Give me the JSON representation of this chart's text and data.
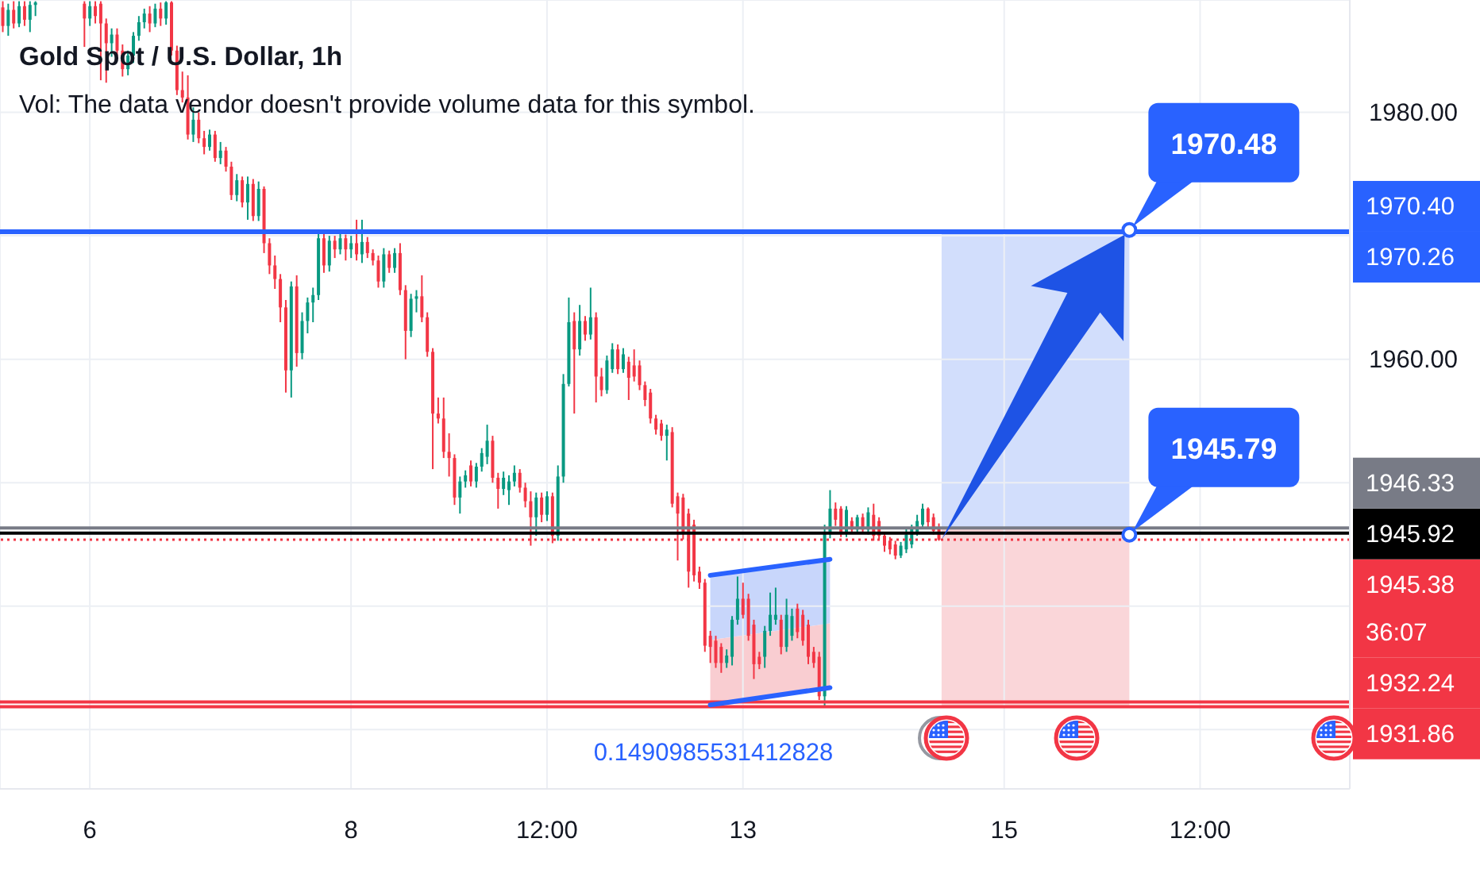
{
  "chart_data": {
    "type": "candlestick",
    "title": "Gold Spot / U.S. Dollar, 1h",
    "subtitle": "Vol: The data vendor doesn't provide volume data for this symbol.",
    "categories": [
      null,
      null,
      null,
      null,
      null,
      null,
      null,
      null,
      null,
      null,
      null,
      null,
      null,
      null,
      null,
      null,
      "6",
      null,
      null,
      null,
      null,
      null,
      null,
      null,
      null,
      null,
      null,
      null,
      null,
      null,
      null,
      null,
      null,
      null,
      null,
      null,
      null,
      null,
      null,
      null,
      null,
      null,
      null,
      null,
      null,
      null,
      null,
      null,
      null,
      null,
      null,
      null,
      null,
      null,
      null,
      null,
      null,
      null,
      null,
      null,
      null,
      null,
      null,
      null,
      "8",
      null,
      null,
      null,
      null,
      null,
      null,
      null,
      null,
      null,
      null,
      null,
      null,
      null,
      null,
      null,
      null,
      null,
      null,
      null,
      null,
      null,
      null,
      null,
      null,
      null,
      null,
      null,
      null,
      null,
      null,
      null,
      null,
      null,
      null,
      null,
      "12:00",
      null,
      null,
      null,
      null,
      null,
      null,
      null,
      null,
      null,
      null,
      null,
      null,
      null,
      null,
      null,
      null,
      null,
      null,
      null,
      null,
      null,
      null,
      null,
      null,
      null,
      null,
      null,
      null,
      null,
      null,
      null,
      null,
      null,
      null,
      null,
      "13",
      null,
      null,
      null,
      null,
      null,
      null,
      null,
      null,
      null,
      null,
      null,
      null,
      null,
      null,
      null,
      null,
      null,
      null,
      null,
      null,
      null,
      null,
      null,
      null,
      null,
      null,
      null,
      null,
      null,
      null,
      null,
      null,
      null,
      null,
      null,
      null,
      null,
      null,
      null,
      null,
      null,
      null,
      null,
      null,
      null,
      null,
      null,
      "15",
      null,
      null,
      null,
      null,
      null,
      null,
      null,
      null,
      null,
      null,
      null,
      null,
      null,
      null,
      null,
      null,
      null,
      null,
      null,
      null,
      null,
      null,
      null,
      null,
      null,
      null,
      null,
      null,
      null,
      null,
      null,
      null,
      null,
      null,
      null,
      "12:00",
      null,
      null,
      null,
      null,
      null,
      null,
      null,
      null,
      null,
      null,
      null,
      null,
      null,
      null,
      null,
      null,
      null,
      null,
      null,
      null,
      null,
      null,
      null,
      null,
      null,
      null,
      null
    ],
    "ohlc": [
      [
        1988.5,
        1989.0,
        1986.5,
        1987.0
      ],
      [
        1987.0,
        1988.8,
        1986.2,
        1988.3
      ],
      [
        1988.3,
        1989.0,
        1986.8,
        1987.2
      ],
      [
        1987.2,
        1989.0,
        1986.9,
        1988.6
      ],
      [
        1988.6,
        1989.0,
        1987.0,
        1987.5
      ],
      [
        1987.5,
        1989.0,
        1986.5,
        1988.7
      ],
      [
        1988.7,
        1989.0,
        1987.8,
        1988.9
      ],
      null,
      null,
      null,
      null,
      null,
      null,
      null,
      null,
      [
        1988.8,
        1989.0,
        1985.3,
        1987.6
      ],
      [
        1987.6,
        1989.0,
        1987.0,
        1988.6
      ],
      [
        1988.6,
        1989.0,
        1987.2,
        1987.8
      ],
      [
        1988.8,
        1989.0,
        1982.6,
        1987.2
      ],
      [
        1987.2,
        1987.6,
        1982.4,
        1985.6
      ],
      [
        1985.6,
        1986.8,
        1984.5,
        1986.3
      ],
      [
        1986.3,
        1986.8,
        1984.3,
        1985.0
      ],
      [
        1985.0,
        1985.5,
        1982.9,
        1983.5
      ],
      [
        1983.5,
        1985.0,
        1983.0,
        1984.6
      ],
      [
        1984.6,
        1986.5,
        1984.0,
        1986.2
      ],
      [
        1986.2,
        1987.8,
        1985.8,
        1987.3
      ],
      [
        1987.3,
        1988.4,
        1986.8,
        1988.0
      ],
      [
        1988.0,
        1988.6,
        1986.5,
        1987.2
      ],
      [
        1987.2,
        1988.8,
        1986.9,
        1988.4
      ],
      [
        1988.4,
        1988.9,
        1987.0,
        1987.6
      ],
      [
        1987.6,
        1989.0,
        1987.1,
        1988.9
      ],
      [
        1988.9,
        1989.0,
        1984.6,
        1985.0
      ],
      [
        1985.0,
        1985.4,
        1981.4,
        1981.8
      ],
      [
        1981.8,
        1983.3,
        1980.8,
        1981.2
      ],
      [
        1981.2,
        1983.0,
        1977.8,
        1978.2
      ],
      [
        1978.2,
        1980.4,
        1977.6,
        1979.4
      ],
      [
        1979.4,
        1980.0,
        1977.5,
        1977.9
      ],
      [
        1977.9,
        1978.5,
        1976.6,
        1977.2
      ],
      [
        1977.2,
        1978.6,
        1976.9,
        1978.2
      ],
      [
        1978.2,
        1978.5,
        1976.0,
        1976.3
      ],
      [
        1976.3,
        1977.6,
        1975.8,
        1976.9
      ],
      [
        1976.9,
        1977.2,
        1975.2,
        1975.6
      ],
      [
        1975.6,
        1976.0,
        1972.9,
        1973.3
      ],
      [
        1973.3,
        1975.0,
        1972.8,
        1974.5
      ],
      [
        1974.5,
        1974.8,
        1972.3,
        1972.7
      ],
      [
        1972.7,
        1974.8,
        1971.3,
        1974.2
      ],
      [
        1974.2,
        1974.6,
        1971.2,
        1971.6
      ],
      [
        1971.6,
        1974.4,
        1971.2,
        1973.8
      ],
      [
        1973.8,
        1974.0,
        1968.6,
        1969.4
      ],
      [
        1969.4,
        1969.8,
        1966.9,
        1967.6
      ],
      [
        1967.6,
        1968.4,
        1965.7,
        1966.5
      ],
      [
        1966.5,
        1966.9,
        1963.0,
        1964.2
      ],
      [
        1964.2,
        1964.8,
        1957.3,
        1959.1
      ],
      [
        1959.1,
        1966.3,
        1956.9,
        1965.9
      ],
      [
        1965.9,
        1966.8,
        1959.4,
        1960.5
      ],
      [
        1960.5,
        1963.8,
        1960.0,
        1963.1
      ],
      [
        1963.1,
        1965.0,
        1962.1,
        1964.6
      ],
      [
        1964.6,
        1965.8,
        1963.0,
        1965.2
      ],
      [
        1965.2,
        1970.3,
        1964.8,
        1969.8
      ],
      [
        1969.8,
        1970.4,
        1967.0,
        1967.6
      ],
      [
        1967.6,
        1970.0,
        1967.1,
        1969.6
      ],
      [
        1969.6,
        1970.0,
        1968.2,
        1968.9
      ],
      [
        1968.9,
        1970.3,
        1968.5,
        1969.8
      ],
      [
        1969.8,
        1970.1,
        1968.0,
        1968.9
      ],
      [
        1968.9,
        1970.0,
        1968.2,
        1969.4
      ],
      [
        1969.4,
        1971.3,
        1968.0,
        1968.5
      ],
      [
        1968.5,
        1971.3,
        1967.8,
        1969.5
      ],
      [
        1969.5,
        1969.9,
        1968.2,
        1968.6
      ],
      [
        1968.6,
        1968.9,
        1967.6,
        1968.0
      ],
      [
        1968.0,
        1968.4,
        1965.8,
        1966.3
      ],
      [
        1966.3,
        1969.0,
        1965.8,
        1968.5
      ],
      [
        1968.5,
        1968.8,
        1967.0,
        1967.4
      ],
      [
        1967.4,
        1969.0,
        1967.0,
        1968.6
      ],
      [
        1968.6,
        1969.4,
        1965.2,
        1965.6
      ],
      [
        1965.6,
        1966.0,
        1960.0,
        1962.3
      ],
      [
        1962.3,
        1965.3,
        1961.8,
        1964.9
      ],
      [
        1964.9,
        1965.6,
        1963.8,
        1965.1
      ],
      [
        1965.1,
        1966.8,
        1963.0,
        1963.4
      ],
      [
        1963.4,
        1963.8,
        1960.2,
        1960.6
      ],
      [
        1960.6,
        1960.9,
        1951.1,
        1955.6
      ],
      [
        1955.6,
        1956.9,
        1954.8,
        1955.2
      ],
      [
        1955.2,
        1956.9,
        1952.0,
        1952.5
      ],
      [
        1952.5,
        1954.0,
        1950.5,
        1952.0
      ],
      [
        1952.0,
        1952.3,
        1948.2,
        1948.8
      ],
      [
        1948.8,
        1950.5,
        1947.5,
        1950.1
      ],
      [
        1950.1,
        1951.0,
        1949.6,
        1950.6
      ],
      [
        1951.4,
        1951.8,
        1949.7,
        1950.1
      ],
      [
        1950.1,
        1951.6,
        1949.6,
        1951.3
      ],
      [
        1951.3,
        1952.8,
        1950.9,
        1952.4
      ],
      [
        1952.1,
        1954.7,
        1951.5,
        1953.4
      ],
      [
        1953.4,
        1953.8,
        1950.0,
        1950.4
      ],
      [
        1950.4,
        1950.8,
        1947.9,
        1949.5
      ],
      [
        1949.5,
        1950.9,
        1949.0,
        1950.4
      ],
      [
        1949.4,
        1950.6,
        1948.2,
        1950.1
      ],
      [
        1950.1,
        1951.4,
        1949.7,
        1950.8
      ],
      [
        1950.8,
        1951.1,
        1949.2,
        1949.6
      ],
      [
        1949.6,
        1950.0,
        1948.0,
        1948.5
      ],
      [
        1948.5,
        1949.3,
        1944.9,
        1947.2
      ],
      [
        1947.2,
        1949.2,
        1945.7,
        1948.8
      ],
      [
        1948.8,
        1949.2,
        1946.8,
        1947.4
      ],
      [
        1947.4,
        1949.3,
        1946.9,
        1948.9
      ],
      [
        1948.9,
        1949.2,
        1945.1,
        1945.7
      ],
      [
        1945.7,
        1951.4,
        1945.3,
        1950.5
      ],
      [
        1950.5,
        1958.8,
        1950.0,
        1958.0
      ],
      [
        1958.0,
        1965.0,
        1957.8,
        1963.0
      ],
      [
        1963.1,
        1963.8,
        1955.6,
        1960.8
      ],
      [
        1960.8,
        1964.4,
        1960.3,
        1963.1
      ],
      [
        1963.1,
        1963.5,
        1961.5,
        1962.0
      ],
      [
        1962.0,
        1965.8,
        1961.6,
        1963.4
      ],
      [
        1963.4,
        1963.8,
        1956.5,
        1958.6
      ],
      [
        1958.6,
        1959.3,
        1957.0,
        1957.5
      ],
      [
        1957.5,
        1960.3,
        1957.2,
        1959.9
      ],
      [
        1959.2,
        1961.3,
        1958.9,
        1960.8
      ],
      [
        1960.8,
        1961.2,
        1958.8,
        1959.2
      ],
      [
        1959.2,
        1960.9,
        1958.9,
        1960.4
      ],
      [
        1959.8,
        1960.2,
        1956.7,
        1958.5
      ],
      [
        1959.5,
        1960.8,
        1958.2,
        1958.6
      ],
      [
        1959.5,
        1959.9,
        1957.5,
        1957.9
      ],
      [
        1957.9,
        1958.2,
        1956.2,
        1956.7
      ],
      [
        1957.3,
        1957.6,
        1954.8,
        1955.2
      ],
      [
        1955.2,
        1955.5,
        1953.9,
        1954.3
      ],
      [
        1954.8,
        1955.1,
        1953.4,
        1953.8
      ],
      [
        1953.8,
        1954.7,
        1951.8,
        1954.3
      ],
      [
        1954.1,
        1954.5,
        1948.0,
        1948.3
      ],
      [
        1948.9,
        1949.2,
        1943.7,
        1947.5
      ],
      [
        1948.8,
        1949.1,
        1945.4,
        1946.0
      ],
      [
        1947.5,
        1947.9,
        1941.5,
        1942.8
      ],
      [
        1946.6,
        1947.0,
        1942.0,
        1942.5
      ],
      [
        1942.8,
        1943.2,
        1941.4,
        1941.9
      ],
      [
        1941.9,
        1942.2,
        1936.3,
        1936.8
      ],
      [
        1937.6,
        1938.0,
        1935.4,
        1936.7
      ],
      [
        1937.2,
        1937.6,
        1935.0,
        1935.4
      ],
      [
        1936.7,
        1937.0,
        1934.6,
        1935.4
      ],
      [
        1935.4,
        1936.5,
        1935.0,
        1936.0
      ],
      [
        1935.9,
        1939.2,
        1935.2,
        1938.9
      ],
      [
        1938.9,
        1942.4,
        1938.5,
        1940.6
      ],
      [
        1940.6,
        1941.9,
        1939.0,
        1939.3
      ],
      [
        1940.6,
        1941.0,
        1937.2,
        1937.6
      ],
      [
        1938.5,
        1938.9,
        1934.1,
        1935.3
      ],
      [
        1935.9,
        1936.3,
        1934.9,
        1935.3
      ],
      [
        1935.9,
        1938.4,
        1935.0,
        1938.0
      ],
      [
        1938.0,
        1941.1,
        1937.6,
        1939.3
      ],
      [
        1938.9,
        1941.5,
        1938.5,
        1939.3
      ],
      [
        1938.9,
        1939.3,
        1936.1,
        1936.7
      ],
      [
        1936.7,
        1940.6,
        1936.3,
        1939.3
      ],
      [
        1937.6,
        1939.8,
        1937.2,
        1939.2
      ],
      [
        1939.8,
        1940.2,
        1937.4,
        1937.9
      ],
      [
        1939.3,
        1939.7,
        1936.8,
        1937.2
      ],
      [
        1938.5,
        1938.9,
        1935.3,
        1935.9
      ],
      [
        1936.3,
        1936.7,
        1935.0,
        1935.4
      ],
      [
        1935.9,
        1936.3,
        1932.4,
        1932.7
      ],
      [
        1932.7,
        1946.6,
        1931.9,
        1945.9
      ],
      [
        1945.9,
        1949.4,
        1945.5,
        1947.9
      ],
      [
        1947.9,
        1948.4,
        1946.5,
        1947.0
      ],
      [
        1947.9,
        1948.1,
        1945.6,
        1946.0
      ],
      [
        1946.0,
        1948.1,
        1945.6,
        1947.8
      ],
      [
        1946.9,
        1947.2,
        1945.9,
        1946.2
      ],
      [
        1946.2,
        1947.4,
        1945.9,
        1947.2
      ],
      [
        1947.2,
        1947.5,
        1945.9,
        1946.2
      ],
      [
        1946.2,
        1948.0,
        1945.8,
        1947.6
      ],
      [
        1947.4,
        1948.3,
        1945.3,
        1945.7
      ],
      [
        1946.9,
        1947.2,
        1945.4,
        1945.7
      ],
      [
        1945.7,
        1946.0,
        1944.4,
        1944.9
      ],
      [
        1945.3,
        1945.6,
        1944.2,
        1944.6
      ],
      [
        1945.0,
        1945.3,
        1943.8,
        1944.1
      ],
      [
        1944.1,
        1945.2,
        1943.9,
        1944.9
      ],
      [
        1944.6,
        1946.4,
        1944.3,
        1945.8
      ],
      [
        1945.0,
        1946.6,
        1944.7,
        1946.3
      ],
      [
        1946.0,
        1947.4,
        1945.7,
        1946.9
      ],
      [
        1946.6,
        1948.3,
        1946.3,
        1947.9
      ],
      [
        1947.9,
        1948.0,
        1946.4,
        1946.8
      ],
      [
        1947.2,
        1947.5,
        1945.8,
        1946.1
      ],
      [
        1946.4,
        1946.7,
        1945.3,
        1945.38
      ],
      null,
      null,
      null,
      null,
      null,
      null,
      null,
      null,
      null,
      null,
      null,
      null,
      null,
      null,
      null,
      null,
      null,
      null,
      null,
      null,
      null,
      null,
      null,
      null,
      null,
      null,
      null,
      null,
      null,
      null,
      null,
      null,
      null,
      null,
      null,
      null,
      null,
      null,
      null,
      null,
      null,
      null,
      null,
      null,
      null,
      null,
      null,
      null,
      null,
      null,
      null,
      null,
      null,
      null,
      null,
      null,
      null,
      null,
      null,
      null,
      null,
      null,
      null,
      null,
      null,
      null,
      null,
      null,
      null,
      null,
      null,
      null,
      null,
      null,
      null
    ],
    "colors": [
      "#f23645",
      "#089981",
      "#f23645",
      "#089981",
      "#f23645",
      "#089981",
      "#089981",
      null,
      null,
      null,
      null,
      null,
      null,
      null,
      null,
      "#f23645",
      "#089981",
      "#f23645",
      "#f23645",
      "#f23645",
      "#089981",
      "#f23645",
      "#f23645",
      "#089981",
      "#089981",
      "#089981",
      "#089981",
      "#f23645",
      "#089981",
      "#f23645",
      "#089981",
      "#f23645",
      "#f23645",
      "#f23645",
      "#f23645",
      "#089981",
      "#f23645",
      "#f23645",
      "#089981",
      "#f23645",
      "#089981",
      "#f23645",
      "#f23645",
      "#089981",
      "#f23645",
      "#089981",
      "#f23645",
      "#089981",
      "#f23645",
      "#f23645",
      "#f23645",
      "#f23645",
      "#f23645",
      "#089981",
      "#f23645",
      "#089981",
      "#089981",
      "#089981",
      "#089981",
      "#f23645",
      "#089981",
      "#f23645",
      "#089981",
      "#f23645",
      "#089981",
      "#f23645",
      "#089981",
      "#f23645",
      "#f23645",
      "#f23645",
      "#089981",
      "#f23645",
      "#089981",
      "#f23645",
      "#f23645",
      "#089981",
      "#089981",
      "#f23645",
      "#f23645",
      "#f23645",
      "#f23645",
      "#f23645",
      "#f23645",
      "#f23645",
      "#089981",
      "#089981",
      "#f23645",
      "#089981",
      "#089981",
      "#089981",
      "#f23645",
      "#f23645",
      "#089981",
      "#089981",
      "#089981",
      "#f23645",
      "#f23645",
      "#f23645",
      "#089981",
      "#f23645",
      "#089981",
      "#f23645",
      "#089981",
      "#089981",
      "#089981",
      "#f23645",
      "#089981",
      "#f23645",
      "#089981",
      "#f23645",
      "#f23645",
      "#089981",
      "#089981",
      "#f23645",
      "#089981",
      "#f23645",
      "#f23645",
      "#f23645",
      "#f23645",
      "#f23645",
      "#f23645",
      "#f23645",
      "#089981",
      "#f23645",
      "#f23645",
      "#f23645",
      "#f23645",
      "#f23645",
      "#f23645",
      "#f23645",
      "#f23645",
      "#f23645",
      "#f23645",
      "#089981",
      "#089981",
      "#089981",
      "#f23645",
      "#f23645",
      "#f23645",
      "#f23645",
      "#089981",
      "#089981",
      "#089981",
      "#f23645",
      "#089981",
      "#089981",
      "#f23645",
      "#f23645",
      "#f23645",
      "#f23645",
      "#f23645",
      "#089981",
      "#089981",
      "#f23645",
      "#f23645",
      "#089981",
      "#f23645",
      "#089981",
      "#f23645",
      "#089981",
      "#f23645",
      "#f23645",
      "#f23645",
      "#f23645",
      "#f23645",
      "#089981",
      "#089981",
      "#089981",
      "#089981",
      "#089981",
      "#f23645",
      "#f23645",
      "#f23645",
      null,
      null,
      null,
      null,
      null,
      null,
      null,
      null,
      null,
      null,
      null,
      null,
      null,
      null,
      null,
      null,
      null,
      null,
      null,
      null,
      null,
      null,
      null,
      null,
      null,
      null,
      null,
      null,
      null,
      null,
      null,
      null,
      null,
      null,
      null,
      null,
      null,
      null,
      null,
      null,
      null,
      null,
      null,
      null,
      null,
      null,
      null,
      null,
      null,
      null,
      null,
      null,
      null,
      null,
      null,
      null,
      null,
      null,
      null,
      null,
      null,
      null,
      null,
      null,
      null,
      null,
      null,
      null,
      null,
      null,
      null,
      null,
      null,
      null,
      null
    ],
    "series": [
      {
        "type": "line",
        "color": "#2962ff",
        "values": [
          null,
          null,
          null,
          null,
          null,
          null,
          null,
          null,
          null,
          null,
          null,
          null,
          null,
          null,
          null,
          null,
          null,
          null,
          null,
          null,
          null,
          null,
          null,
          null,
          null,
          null,
          null,
          null,
          null,
          null,
          null,
          null,
          null,
          null,
          null,
          null,
          null,
          null,
          null,
          null,
          null,
          null,
          null,
          null,
          null,
          null,
          null,
          null,
          null,
          null,
          null,
          null,
          null,
          null,
          null,
          null,
          null,
          null,
          null,
          null,
          null,
          null,
          null,
          null,
          null,
          null,
          null,
          null,
          null,
          null,
          null,
          null,
          null,
          null,
          null,
          null,
          null,
          null,
          null,
          null,
          null,
          null,
          null,
          null,
          null,
          null,
          null,
          null,
          null,
          null,
          null,
          null,
          null,
          null,
          null,
          null,
          null,
          null,
          null,
          null,
          null,
          null,
          null,
          null,
          null,
          null,
          null,
          null,
          null,
          null,
          null,
          null,
          null,
          null,
          null,
          null,
          null,
          null,
          null,
          null,
          null,
          null,
          null,
          null,
          null,
          null,
          null,
          null,
          null,
          null,
          1942.5,
          null,
          null,
          null,
          null,
          null,
          null,
          null,
          null,
          null,
          null,
          null,
          null,
          null,
          null,
          null,
          null,
          null,
          null,
          null,
          null,
          null,
          1943.8,
          null,
          null,
          null,
          null,
          null,
          null,
          null,
          null,
          null,
          null,
          null,
          null,
          null,
          null,
          null,
          null,
          null,
          null,
          null,
          null,
          null,
          null,
          null,
          null,
          null,
          null,
          null,
          null,
          null,
          null,
          null,
          null,
          null,
          null,
          null,
          null,
          null,
          null,
          null,
          null,
          null,
          null,
          null,
          null,
          null,
          null,
          null,
          null,
          null,
          null,
          null,
          null,
          null,
          null,
          null,
          null,
          null,
          null,
          null,
          null,
          null,
          null,
          null,
          null,
          null,
          null,
          null,
          null,
          null,
          null,
          null,
          null,
          null,
          null,
          null,
          null,
          null,
          null,
          null,
          null,
          null,
          null,
          null,
          null,
          null,
          null,
          null,
          null,
          null,
          null,
          null,
          null,
          null,
          null,
          null
        ]
      },
      {
        "type": "line",
        "color": "#2962ff",
        "values": [
          null,
          null,
          null,
          null,
          null,
          null,
          null,
          null,
          null,
          null,
          null,
          null,
          null,
          null,
          null,
          null,
          null,
          null,
          null,
          null,
          null,
          null,
          null,
          null,
          null,
          null,
          null,
          null,
          null,
          null,
          null,
          null,
          null,
          null,
          null,
          null,
          null,
          null,
          null,
          null,
          null,
          null,
          null,
          null,
          null,
          null,
          null,
          null,
          null,
          null,
          null,
          null,
          null,
          null,
          null,
          null,
          null,
          null,
          null,
          null,
          null,
          null,
          null,
          null,
          null,
          null,
          null,
          null,
          null,
          null,
          null,
          null,
          null,
          null,
          null,
          null,
          null,
          null,
          null,
          null,
          null,
          null,
          null,
          null,
          null,
          null,
          null,
          null,
          null,
          null,
          null,
          null,
          null,
          null,
          null,
          null,
          null,
          null,
          null,
          null,
          null,
          null,
          null,
          null,
          null,
          null,
          null,
          null,
          null,
          null,
          null,
          null,
          null,
          null,
          null,
          null,
          null,
          null,
          null,
          null,
          null,
          null,
          null,
          null,
          null,
          null,
          null,
          null,
          null,
          null,
          1932.0,
          null,
          null,
          null,
          null,
          null,
          null,
          null,
          null,
          null,
          null,
          null,
          null,
          null,
          null,
          null,
          null,
          null,
          null,
          null,
          null,
          null,
          1933.4,
          null,
          null,
          null,
          null,
          null,
          null,
          null,
          null,
          null,
          null,
          null,
          null,
          null,
          null,
          null,
          null,
          null,
          null,
          null,
          null,
          null,
          null,
          null,
          null,
          null,
          null,
          null,
          null,
          null,
          null,
          null,
          null,
          null,
          null,
          null,
          null,
          null,
          null,
          null,
          null,
          null,
          null,
          null,
          null,
          null,
          null,
          null,
          null,
          null,
          null,
          null,
          null,
          null,
          null,
          null,
          null,
          null,
          null,
          null,
          null,
          null,
          null,
          null,
          null,
          null,
          null,
          null,
          null,
          null,
          null,
          null,
          null,
          null,
          null,
          null,
          null,
          null,
          null,
          null,
          null,
          null,
          null,
          null,
          null,
          null,
          null,
          null,
          null,
          null,
          null,
          null,
          null,
          null,
          null,
          null
        ]
      }
    ],
    "ylim": [
      1925.2,
      1989.1
    ],
    "yticks": [
      {
        "value": 1930,
        "label": null
      },
      {
        "value": 1940,
        "label": null
      },
      {
        "value": 1950,
        "label": null
      },
      {
        "value": 1960,
        "label": "1960.00"
      },
      {
        "value": 1970,
        "label": null
      },
      {
        "value": 1980,
        "label": "1980.00"
      }
    ],
    "grid": true,
    "ref_lines": [
      {
        "axis": "y",
        "value": 1945.38,
        "label": "1945.38\n36:07",
        "color": "#f23645",
        "line_style": "dotted"
      },
      {
        "axis": "y",
        "value": 1970.26,
        "label": "1970.26",
        "color": "#2962ff"
      },
      {
        "axis": "y",
        "value": 1970.4,
        "label": "1970.40",
        "color": "#2962ff"
      },
      {
        "axis": "y",
        "value": 1945.92,
        "label": "1945.92",
        "color": "#000000"
      },
      {
        "axis": "y",
        "value": 1946.33,
        "label": "1946.33",
        "color": "#787b86"
      },
      {
        "axis": "y",
        "value": 1932.24,
        "label": "1932.24",
        "color": "#f23645"
      },
      {
        "axis": "y",
        "value": 1931.86,
        "label": "1931.86",
        "color": "#f23645"
      }
    ],
    "annotations": [
      {
        "text": "1970.48",
        "y": 1970.48
      },
      {
        "text": "1945.79",
        "y": 1945.79
      },
      "0.1490985531412828"
    ]
  }
}
